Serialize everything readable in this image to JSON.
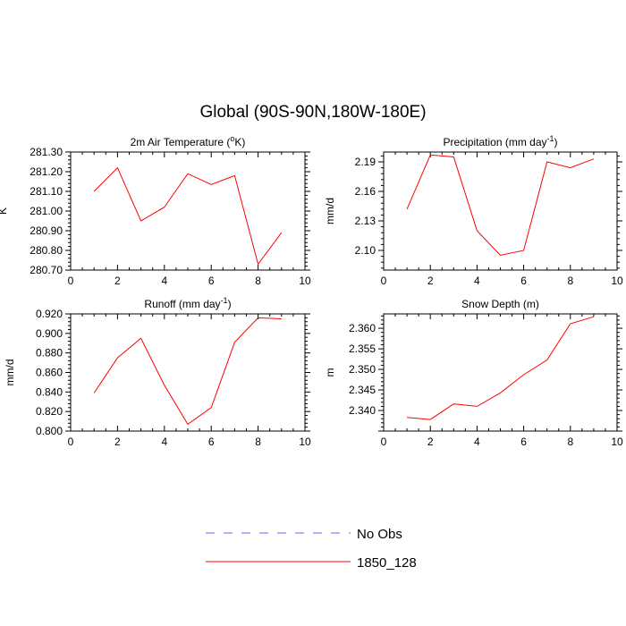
{
  "title": "Global (90S-90N,180W-180E)",
  "legend": [
    {
      "label": "No Obs",
      "color": "#6666ff",
      "style": "dashed"
    },
    {
      "label": "1850_128",
      "color": "#ff0000",
      "style": "solid"
    }
  ],
  "chart_data": [
    {
      "type": "line",
      "title": "2m Air Temperature (oK)",
      "title_main": "2m Air Temperature (",
      "title_sup": "o",
      "title_end": "K)",
      "ylabel": "K",
      "xlim": [
        0,
        10
      ],
      "ylim": [
        280.7,
        281.3
      ],
      "xticks": [
        0,
        2,
        4,
        6,
        8,
        10
      ],
      "yticks": [
        280.7,
        280.8,
        280.9,
        281.0,
        281.1,
        281.2,
        281.3
      ],
      "ytick_labels": [
        "280.70",
        "280.80",
        "280.90",
        "281.00",
        "281.10",
        "281.20",
        "281.30"
      ],
      "series": [
        {
          "name": "1850_128",
          "color": "#ff0000",
          "x": [
            1,
            2,
            3,
            4,
            5,
            6,
            7,
            8,
            9
          ],
          "values": [
            281.1,
            281.22,
            280.95,
            281.02,
            281.19,
            281.135,
            281.18,
            280.73,
            280.89
          ]
        }
      ]
    },
    {
      "type": "line",
      "title": "Precipitation (mm day-1)",
      "title_main": "Precipitation (mm day",
      "title_sup": "-1",
      "title_end": ")",
      "ylabel": "mm/d",
      "xlim": [
        0,
        10
      ],
      "ylim": [
        2.08,
        2.2
      ],
      "xticks": [
        0,
        2,
        4,
        6,
        8,
        10
      ],
      "yticks": [
        2.1,
        2.13,
        2.16,
        2.19
      ],
      "ytick_labels": [
        "2.10",
        "2.13",
        "2.16",
        "2.19"
      ],
      "series": [
        {
          "name": "1850_128",
          "color": "#ff0000",
          "x": [
            1,
            2,
            3,
            4,
            5,
            6,
            7,
            8,
            9
          ],
          "values": [
            2.142,
            2.197,
            2.195,
            2.12,
            2.095,
            2.1,
            2.19,
            2.184,
            2.193
          ]
        }
      ]
    },
    {
      "type": "line",
      "title": "Runoff (mm day-1)",
      "title_main": "Runoff (mm day",
      "title_sup": "-1",
      "title_end": ")",
      "ylabel": "mm/d",
      "xlim": [
        0,
        10
      ],
      "ylim": [
        0.8,
        0.92
      ],
      "xticks": [
        0,
        2,
        4,
        6,
        8,
        10
      ],
      "yticks": [
        0.8,
        0.82,
        0.84,
        0.86,
        0.88,
        0.9,
        0.92
      ],
      "ytick_labels": [
        "0.800",
        "0.820",
        "0.840",
        "0.860",
        "0.880",
        "0.900",
        "0.920"
      ],
      "series": [
        {
          "name": "1850_128",
          "color": "#ff0000",
          "x": [
            1,
            2,
            3,
            4,
            5,
            6,
            7,
            8,
            9
          ],
          "values": [
            0.839,
            0.875,
            0.895,
            0.847,
            0.807,
            0.824,
            0.891,
            0.916,
            0.915
          ]
        }
      ]
    },
    {
      "type": "line",
      "title": "Snow Depth (m)",
      "title_main": "Snow Depth (m)",
      "title_sup": "",
      "title_end": "",
      "ylabel": "m",
      "xlim": [
        0,
        10
      ],
      "ylim": [
        2.335,
        2.3635
      ],
      "xticks": [
        0,
        2,
        4,
        6,
        8,
        10
      ],
      "yticks": [
        2.34,
        2.345,
        2.35,
        2.355,
        2.36
      ],
      "ytick_labels": [
        "2.340",
        "2.345",
        "2.350",
        "2.355",
        "2.360"
      ],
      "series": [
        {
          "name": "1850_128",
          "color": "#ff0000",
          "x": [
            1,
            2,
            3,
            4,
            5,
            6,
            7,
            8,
            9
          ],
          "values": [
            2.3383,
            2.3378,
            2.3416,
            2.341,
            2.3443,
            2.3487,
            2.3523,
            2.3611,
            2.3628
          ]
        }
      ]
    }
  ]
}
